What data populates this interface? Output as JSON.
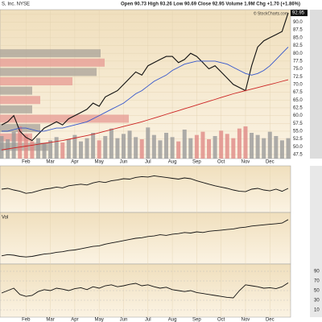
{
  "chart_data": {
    "type": "line",
    "title": "S, Inc. NYSE",
    "quote": "Open 90.73 High 93.26 Low 90.69 Close 92.95 Volume 1.9M Chg +1.70 (+1.86%)",
    "credit": "© StockCharts.com",
    "xticks": [
      {
        "value": 4,
        "label": "Feb"
      },
      {
        "value": 8,
        "label": "Mar"
      },
      {
        "value": 12,
        "label": "Apr"
      },
      {
        "value": 16,
        "label": "May"
      },
      {
        "value": 20,
        "label": "Jun"
      },
      {
        "value": 24,
        "label": "Jul"
      },
      {
        "value": 28,
        "label": "Aug"
      },
      {
        "value": 32,
        "label": "Sep"
      },
      {
        "value": 36,
        "label": "Oct"
      },
      {
        "value": 40,
        "label": "Nov"
      },
      {
        "value": 44,
        "label": "Dec"
      }
    ],
    "ylim": [
      46.2,
      94
    ],
    "yticks": [
      47.5,
      {
        "value": 50,
        "label": "50.0"
      },
      52.5,
      {
        "value": 55,
        "label": "55.0"
      },
      57.5,
      {
        "value": 60,
        "label": "60.0"
      },
      62.5,
      {
        "value": 65,
        "label": "65.0"
      },
      67.5,
      {
        "value": 70,
        "label": "70.0"
      },
      72.5,
      {
        "value": 75,
        "label": "75.0"
      },
      77.5,
      {
        "value": 80,
        "label": "80.0"
      },
      82.5,
      {
        "value": 85,
        "label": "85.0"
      },
      87.5,
      {
        "value": 90,
        "label": "90.0"
      },
      92.5
    ],
    "grid": true,
    "series": [
      {
        "color": "#111111",
        "values": [
          57,
          58,
          60,
          55,
          53,
          52,
          54,
          56,
          57,
          58,
          57,
          59,
          60,
          61,
          62,
          64,
          63,
          66,
          67,
          68,
          70,
          72,
          74,
          73,
          76,
          77,
          78,
          79,
          79,
          77,
          78,
          80,
          79,
          77,
          75,
          76,
          74,
          72,
          70,
          69,
          68,
          76,
          82,
          84,
          85,
          86,
          87,
          92.95
        ]
      },
      {
        "color": "#3355cc",
        "values": [
          55,
          55,
          55.5,
          56,
          56,
          55.5,
          55,
          55,
          55.5,
          56,
          56,
          56.5,
          57,
          57.5,
          58,
          59,
          60,
          61,
          62,
          63,
          64,
          65.5,
          67,
          68,
          69.5,
          71,
          72,
          73,
          74.5,
          75.5,
          76.5,
          77,
          77.5,
          77.5,
          77.5,
          77.5,
          77,
          76.5,
          75.5,
          74.5,
          73.5,
          73,
          73.5,
          74.5,
          76,
          78,
          80,
          82
        ]
      },
      {
        "color": "#cc2222",
        "values": [
          49,
          49.3,
          49.6,
          49.9,
          50.2,
          50.5,
          50.8,
          51.1,
          51.4,
          51.7,
          52,
          52.4,
          52.8,
          53.2,
          53.6,
          54,
          54.5,
          55,
          55.5,
          56,
          56.5,
          57,
          57.5,
          58,
          58.6,
          59.2,
          59.8,
          60.4,
          61,
          61.6,
          62.2,
          62.8,
          63.4,
          64,
          64.6,
          65.2,
          65.8,
          66.4,
          67,
          67.5,
          68,
          68.5,
          69,
          69.5,
          70,
          70.5,
          71,
          71.5
        ]
      }
    ],
    "volume": [
      2.1,
      1.8,
      2.5,
      3,
      2.2,
      1.6,
      1.9,
      1.4,
      1.7,
      2,
      1.5,
      1.8,
      2.2,
      1.6,
      1.9,
      2.4,
      1.7,
      2.1,
      2.8,
      1.9,
      2.3,
      2.6,
      2,
      1.8,
      2.9,
      2.2,
      1.7,
      2.4,
      2,
      1.6,
      2.7,
      1.9,
      2.2,
      2.5,
      1.8,
      2.1,
      2.6,
      2.3,
      1.9,
      2.8,
      3,
      2.4,
      2.2,
      1.9,
      2.5,
      2.1,
      1.7,
      1.9
    ],
    "volume_by_price": {
      "prices": [
        80,
        77,
        74,
        71,
        68,
        65,
        62,
        59,
        56,
        53,
        50
      ],
      "values": [
        125,
        130,
        120,
        90,
        40,
        50,
        40,
        160,
        50,
        40,
        60
      ]
    },
    "panels": [
      {
        "values": [
          50,
          52,
          48,
          45,
          40,
          42,
          46,
          50,
          52,
          55,
          53,
          58,
          60,
          62,
          60,
          65,
          68,
          66,
          70,
          72,
          75,
          74,
          78,
          80,
          79,
          82,
          80,
          78,
          76,
          74,
          77,
          75,
          70,
          66,
          62,
          58,
          55,
          52,
          48,
          45,
          44,
          50,
          52,
          48,
          46,
          50,
          45,
          52
        ],
        "ylim": [
          0,
          100
        ]
      },
      {
        "name": "Vol",
        "values": [
          10,
          12,
          11,
          9,
          8,
          9,
          11,
          13,
          14,
          16,
          17,
          19,
          20,
          22,
          24,
          26,
          27,
          30,
          32,
          34,
          36,
          38,
          40,
          41,
          43,
          44,
          46,
          45,
          47,
          48,
          50,
          49,
          51,
          50,
          52,
          53,
          54,
          55,
          56,
          58,
          59,
          61,
          62,
          63,
          64,
          65,
          66,
          72
        ],
        "ylim": [
          0,
          80
        ]
      },
      {
        "values": [
          45,
          50,
          55,
          42,
          38,
          40,
          48,
          52,
          50,
          55,
          53,
          50,
          54,
          56,
          52,
          58,
          55,
          60,
          62,
          58,
          60,
          63,
          65,
          60,
          62,
          58,
          55,
          57,
          52,
          50,
          48,
          50,
          46,
          44,
          42,
          40,
          38,
          36,
          35,
          50,
          62,
          60,
          58,
          55,
          56,
          54,
          58,
          66
        ],
        "ylim": [
          0,
          100
        ],
        "yticks": [
          10,
          30,
          50,
          70,
          90
        ]
      }
    ]
  }
}
